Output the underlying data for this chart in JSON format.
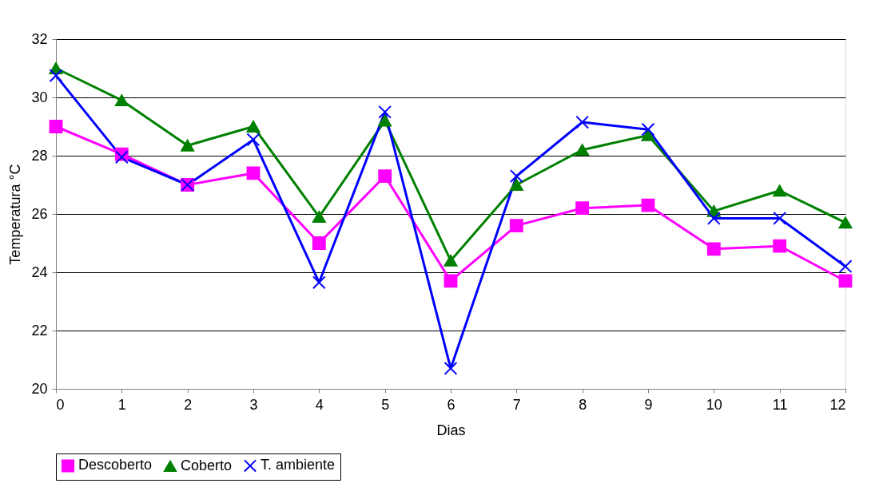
{
  "chart_data": {
    "type": "line",
    "xlabel": "Dias",
    "ylabel": "Temperatura °C",
    "x": [
      0,
      1,
      2,
      3,
      4,
      5,
      6,
      7,
      8,
      9,
      10,
      11,
      12
    ],
    "xlim": [
      0,
      12
    ],
    "xticks": [
      0,
      1,
      2,
      3,
      4,
      5,
      6,
      7,
      8,
      9,
      10,
      11,
      12
    ],
    "ylim": [
      20,
      32
    ],
    "yticks": [
      20,
      22,
      24,
      26,
      28,
      30,
      32
    ],
    "grid": "y",
    "legend": "bottom",
    "line_style": "solid",
    "series": [
      {
        "name": "Descoberto",
        "color": "#ff00ff",
        "marker": "square",
        "values": [
          29.0,
          28.05,
          27.0,
          27.4,
          25.0,
          27.3,
          23.7,
          25.6,
          26.2,
          26.3,
          24.8,
          24.9,
          23.7
        ]
      },
      {
        "name": "Coberto",
        "color": "#008000",
        "marker": "triangle",
        "values": [
          31.0,
          29.9,
          28.35,
          29.0,
          25.9,
          29.2,
          24.4,
          27.0,
          28.2,
          28.7,
          26.1,
          26.8,
          25.7
        ]
      },
      {
        "name": "T. ambiente",
        "color": "#0000ff",
        "marker": "cross",
        "values": [
          30.75,
          27.95,
          27.0,
          28.55,
          23.65,
          29.5,
          20.7,
          27.3,
          29.15,
          28.9,
          25.85,
          25.85,
          24.2
        ]
      }
    ]
  }
}
